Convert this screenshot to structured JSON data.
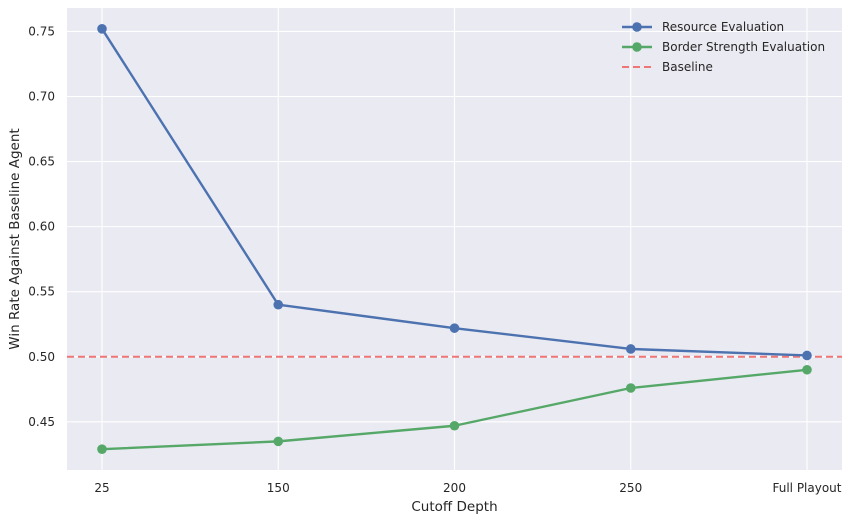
{
  "chart_data": {
    "type": "line",
    "title": "",
    "xlabel": "Cutoff Depth",
    "ylabel": "Win Rate Against Baseline Agent",
    "categories": [
      "25",
      "150",
      "200",
      "250",
      "Full Playout"
    ],
    "ylim": [
      0.413,
      0.768
    ],
    "yticks": [
      0.45,
      0.5,
      0.55,
      0.6,
      0.65,
      0.7,
      0.75
    ],
    "ytick_labels": [
      "0.45",
      "0.50",
      "0.55",
      "0.60",
      "0.65",
      "0.70",
      "0.75"
    ],
    "grid": true,
    "legend_position": "top-right",
    "series": [
      {
        "name": "Resource Evaluation",
        "color": "#4c72b0",
        "marker": "circle",
        "values": [
          0.752,
          0.54,
          0.522,
          0.506,
          0.501
        ]
      },
      {
        "name": "Border Strength Evaluation",
        "color": "#55a868",
        "marker": "circle",
        "values": [
          0.429,
          0.435,
          0.447,
          0.476,
          0.49
        ]
      }
    ],
    "reference_lines": [
      {
        "name": "Baseline",
        "value": 0.5,
        "color": "#f07676",
        "style": "dashed"
      }
    ],
    "background_color": "#eaeaf2",
    "grid_color": "#ffffff"
  }
}
